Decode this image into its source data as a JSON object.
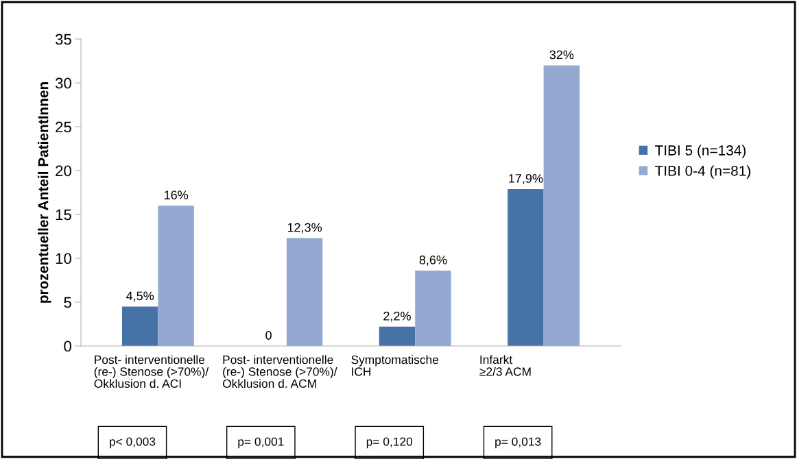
{
  "chart_data": {
    "type": "bar",
    "ylabel": "prozentueller Anteil PatientInnen",
    "categories": [
      "Post- interventionelle\n(re-) Stenose (>70%)/\nOkklusion d. ACI",
      "Post- interventionelle\n(re-) Stenose (>70%)/\nOkklusion d. ACM",
      "Symptomatische\nICH",
      "Infarkt\n≥2/3 ACM"
    ],
    "series": [
      {
        "name": "TIBI 5 (n=134)",
        "color": "#4672a6",
        "values": [
          4.5,
          0,
          2.2,
          17.9
        ],
        "value_labels": [
          "4,5%",
          "0",
          "2,2%",
          "17,9%"
        ]
      },
      {
        "name": "TIBI 0-4 (n=81)",
        "color": "#93a9d2",
        "values": [
          16,
          12.3,
          8.6,
          32
        ],
        "value_labels": [
          "16%",
          "12,3%",
          "8,6%",
          "32%"
        ]
      }
    ],
    "ylim": [
      0,
      35
    ],
    "yticks": [
      0,
      5,
      10,
      15,
      20,
      25,
      30,
      35
    ],
    "grid": false,
    "legend": "right",
    "annotations": [
      "p< 0,003",
      "p= 0,001",
      "p= 0,120",
      "p= 0,013"
    ]
  }
}
